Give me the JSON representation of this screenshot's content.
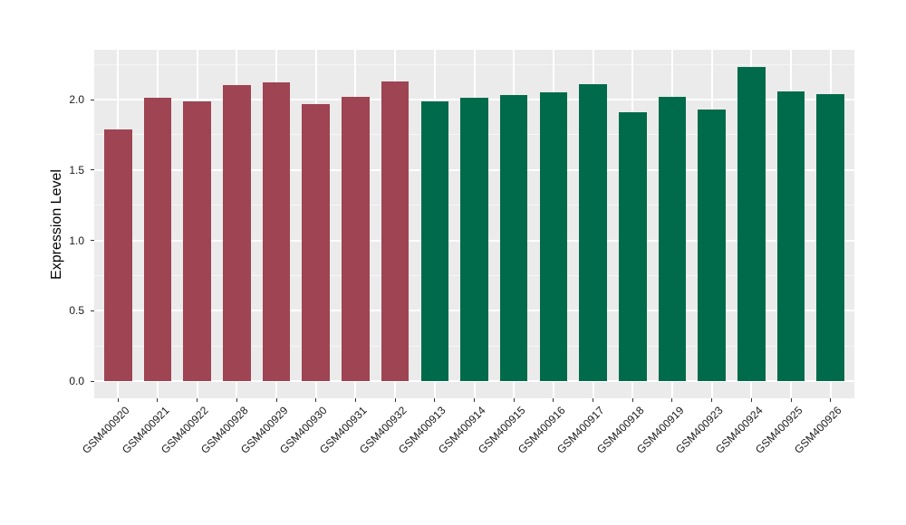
{
  "figure": {
    "background": "#ffffff",
    "panel_background": "#ebebeb",
    "grid_major_color": "#ffffff",
    "grid_minor_color": "#f6f6f6",
    "tick_mark_color": "#333333",
    "axis_text_color": "#1a1a1a",
    "axis_title_color": "#000000"
  },
  "chart_data": {
    "type": "bar",
    "title": "",
    "xlabel": "",
    "ylabel": "Expression Level",
    "legend_position": "none",
    "grid": "on",
    "x_label_rotation_deg": 45,
    "ylim": [
      -0.12,
      2.35
    ],
    "categories": [
      "GSM400920",
      "GSM400921",
      "GSM400922",
      "GSM400928",
      "GSM400929",
      "GSM400930",
      "GSM400931",
      "GSM400932",
      "GSM400913",
      "GSM400914",
      "GSM400915",
      "GSM400916",
      "GSM400917",
      "GSM400918",
      "GSM400919",
      "GSM400923",
      "GSM400924",
      "GSM400925",
      "GSM400926"
    ],
    "values": [
      1.79,
      2.01,
      1.99,
      2.1,
      2.12,
      1.97,
      2.02,
      2.13,
      1.99,
      2.01,
      2.03,
      2.05,
      2.11,
      1.91,
      2.02,
      1.93,
      2.23,
      2.06,
      2.04
    ],
    "bar_colors": [
      "#9e4452",
      "#9e4452",
      "#9e4452",
      "#9e4452",
      "#9e4452",
      "#9e4452",
      "#9e4452",
      "#9e4452",
      "#006b4a",
      "#006b4a",
      "#006b4a",
      "#006b4a",
      "#006b4a",
      "#006b4a",
      "#006b4a",
      "#006b4a",
      "#006b4a",
      "#006b4a",
      "#006b4a"
    ],
    "group_colors": {
      "left_group": "#9e4452",
      "right_group": "#006b4a"
    },
    "yticks": [
      {
        "value": 0.0,
        "label": "0.0"
      },
      {
        "value": 0.5,
        "label": "0.5"
      },
      {
        "value": 1.0,
        "label": "1.0"
      },
      {
        "value": 1.5,
        "label": "1.5"
      },
      {
        "value": 2.0,
        "label": "2.0"
      }
    ],
    "y_minor_ticks": [
      0.25,
      0.75,
      1.25,
      1.75,
      2.25
    ]
  }
}
